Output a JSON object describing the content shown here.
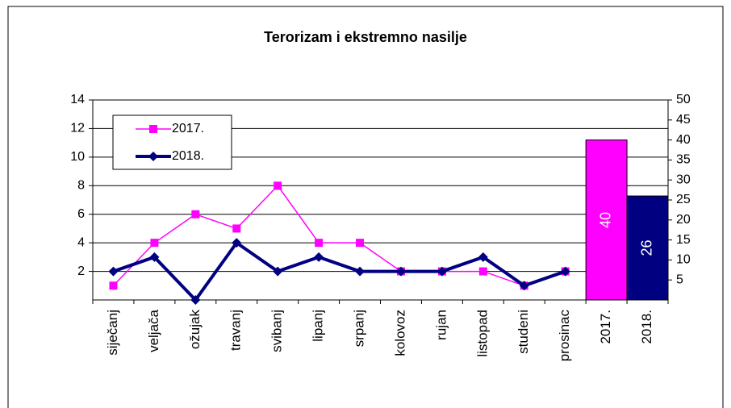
{
  "chart_data": {
    "type": "combo",
    "title": "Terorizam i ekstremno nasilje",
    "categories": [
      "siječanj",
      "veljača",
      "ožujak",
      "travanj",
      "svibanj",
      "lipanj",
      "srpanj",
      "kolovoz",
      "rujan",
      "listopad",
      "studeni",
      "prosinac",
      "2017.",
      "2018."
    ],
    "series": [
      {
        "name": "2017.",
        "type": "line",
        "color": "#ff00ff",
        "marker": "square",
        "values": [
          1,
          4,
          6,
          5,
          8,
          4,
          4,
          2,
          2,
          2,
          1,
          2,
          null,
          null
        ]
      },
      {
        "name": "2018.",
        "type": "line",
        "color": "#000080",
        "marker": "diamond",
        "values": [
          2,
          3,
          0,
          4,
          2,
          3,
          2,
          2,
          2,
          3,
          1,
          2,
          null,
          null
        ]
      },
      {
        "type": "bar",
        "axis": "y2",
        "colors": [
          null,
          null,
          null,
          null,
          null,
          null,
          null,
          null,
          null,
          null,
          null,
          null,
          "#ff00ff",
          "#000080"
        ],
        "values": [
          null,
          null,
          null,
          null,
          null,
          null,
          null,
          null,
          null,
          null,
          null,
          null,
          40,
          26
        ]
      }
    ],
    "ylim": [
      0,
      14
    ],
    "yticks": [
      2,
      4,
      6,
      8,
      10,
      12,
      14
    ],
    "y2lim": [
      0,
      50
    ],
    "y2ticks": [
      5,
      10,
      15,
      20,
      25,
      30,
      35,
      40,
      45,
      50
    ],
    "grid": true,
    "legend": "top-left"
  }
}
